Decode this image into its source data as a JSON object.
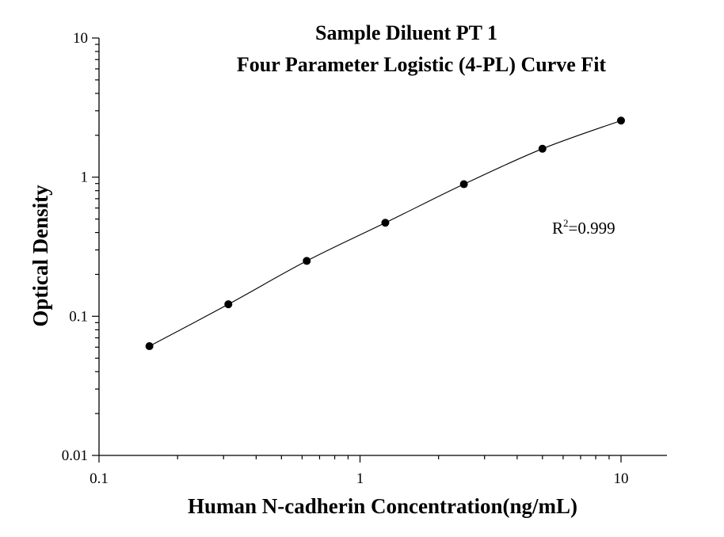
{
  "chart_data": {
    "type": "scatter",
    "title": "Sample Diluent PT 1",
    "subtitle": "Four Parameter Logistic (4-PL) Curve Fit",
    "xlabel": "Human N-cadherin Concentration(ng/mL)",
    "ylabel": "Optical Density",
    "x_scale": "log",
    "y_scale": "log",
    "xlim": [
      0.1,
      15
    ],
    "ylim": [
      0.01,
      10
    ],
    "x_ticks": [
      "0.1",
      "1",
      "10"
    ],
    "y_ticks": [
      "0.01",
      "0.1",
      "1",
      "10"
    ],
    "grid": false,
    "series": [
      {
        "x": [
          0.156,
          0.313,
          0.625,
          1.25,
          2.5,
          5,
          10
        ],
        "y": [
          0.061,
          0.122,
          0.25,
          0.47,
          0.89,
          1.6,
          2.55
        ]
      }
    ],
    "annotation": {
      "base": "R",
      "sup": "2",
      "rest": "=0.999"
    },
    "colors": {
      "points": "#000000",
      "curve": "#000000",
      "axes": "#000000"
    }
  }
}
